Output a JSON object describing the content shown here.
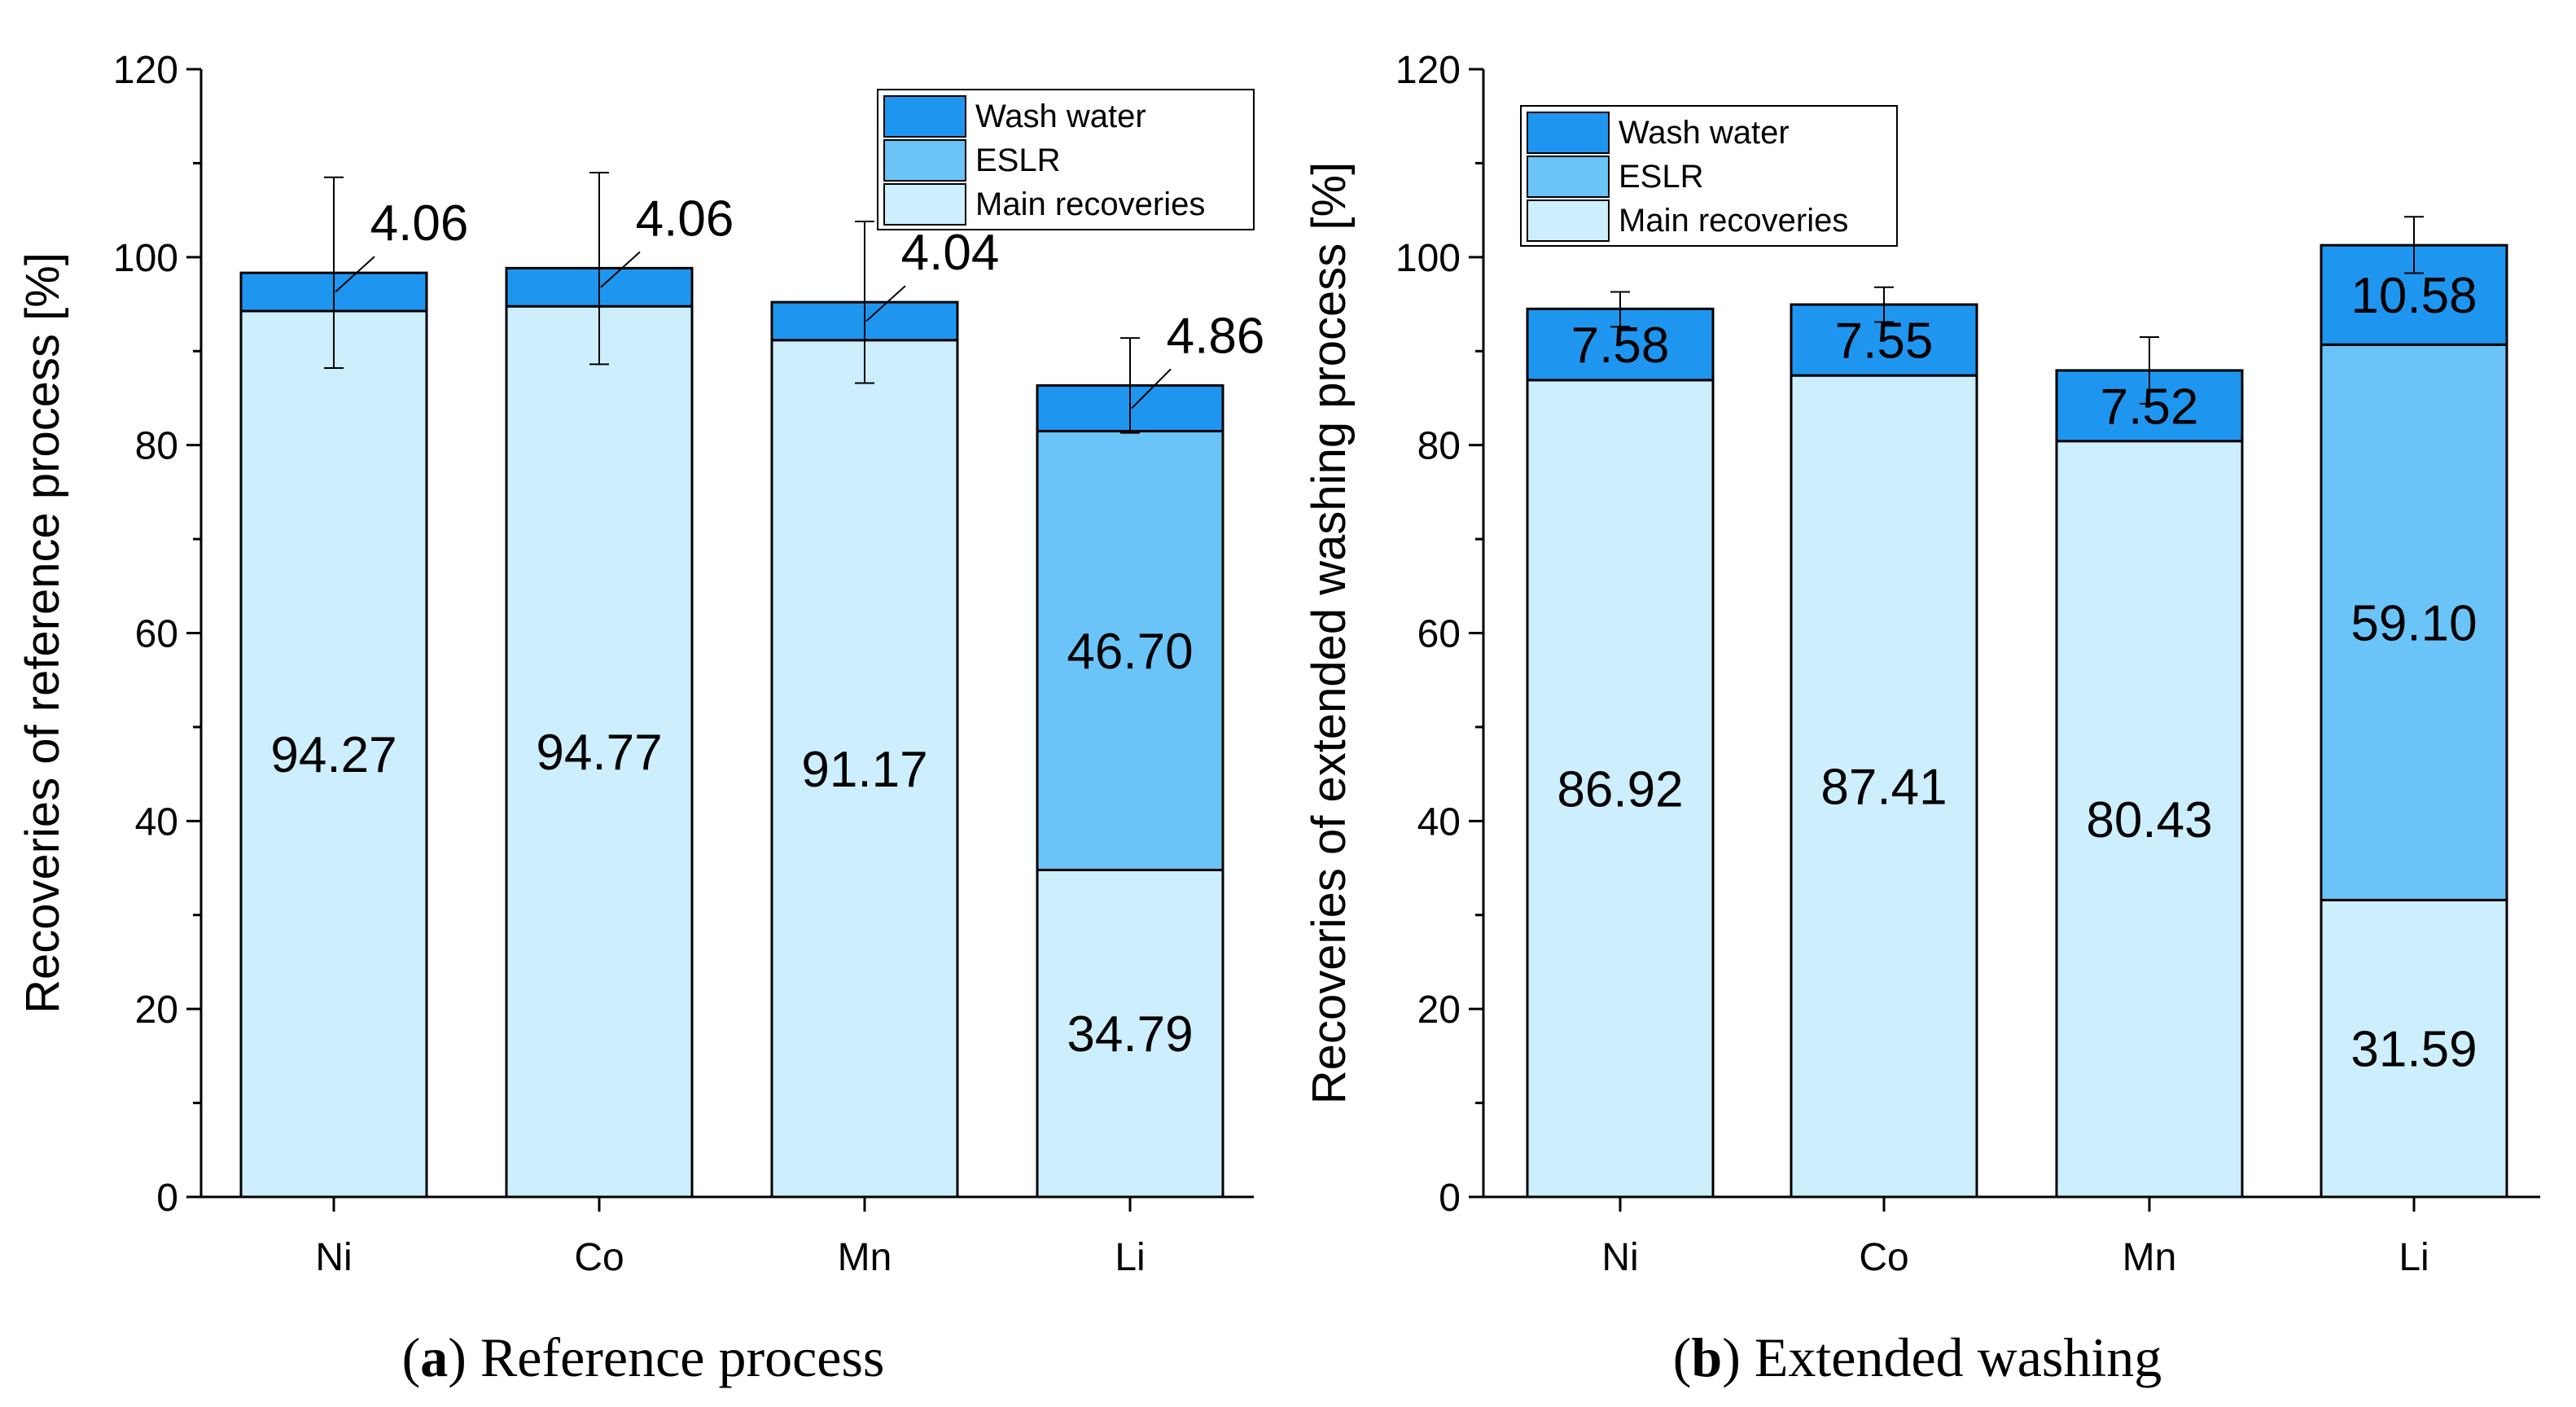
{
  "colors": {
    "main": "#cdeefc",
    "eslr": "#6bc4f7",
    "wash": "#1e96f0",
    "axis": "#000000"
  },
  "legend_labels": [
    "Wash water",
    "ESLR",
    "Main recoveries"
  ],
  "chart_data": [
    {
      "type": "bar",
      "stacked": true,
      "panel_letter": "a",
      "caption": "Reference process",
      "ylabel": "Recoveries of reference process [%]",
      "xlabel": "",
      "ylim": [
        0,
        120
      ],
      "yticks": [
        0,
        20,
        40,
        60,
        80,
        100,
        120
      ],
      "categories": [
        "Ni",
        "Co",
        "Mn",
        "Li"
      ],
      "legend_position": "top-right",
      "series": [
        {
          "name": "Main recoveries",
          "values": [
            94.27,
            94.77,
            91.17,
            34.79
          ],
          "labels": [
            "94.27",
            "94.77",
            "91.17",
            "34.79"
          ]
        },
        {
          "name": "ESLR",
          "values": [
            0,
            0,
            0,
            46.7
          ],
          "labels": [
            "",
            "",
            "",
            "46.70"
          ]
        },
        {
          "name": "Wash water",
          "values": [
            4.06,
            4.06,
            4.04,
            4.86
          ],
          "labels": [
            "4.06",
            "4.06",
            "4.04",
            "4.86"
          ]
        }
      ],
      "error_bars": [
        {
          "center": 98.33,
          "low": 88.2,
          "high": 108.5
        },
        {
          "center": 98.83,
          "low": 88.6,
          "high": 109.0
        },
        {
          "center": 95.21,
          "low": 86.6,
          "high": 103.8
        },
        {
          "center": 86.35,
          "low": 81.3,
          "high": 91.4
        }
      ],
      "wash_labels_outside": true
    },
    {
      "type": "bar",
      "stacked": true,
      "panel_letter": "b",
      "caption": "Extended washing",
      "ylabel": "Recoveries of extended washing process [%]",
      "xlabel": "",
      "ylim": [
        0,
        120
      ],
      "yticks": [
        0,
        20,
        40,
        60,
        80,
        100,
        120
      ],
      "categories": [
        "Ni",
        "Co",
        "Mn",
        "Li"
      ],
      "legend_position": "top-left",
      "series": [
        {
          "name": "Main recoveries",
          "values": [
            86.92,
            87.41,
            80.43,
            31.59
          ],
          "labels": [
            "86.92",
            "87.41",
            "80.43",
            "31.59"
          ]
        },
        {
          "name": "ESLR",
          "values": [
            0,
            0,
            0,
            59.1
          ],
          "labels": [
            "",
            "",
            "",
            "59.10"
          ]
        },
        {
          "name": "Wash water",
          "values": [
            7.58,
            7.55,
            7.52,
            10.58
          ],
          "labels": [
            "7.58",
            "7.55",
            "7.52",
            "10.58"
          ]
        }
      ],
      "error_bars": [
        {
          "center": 94.5,
          "low": 92.6,
          "high": 96.3
        },
        {
          "center": 94.96,
          "low": 93.1,
          "high": 96.8
        },
        {
          "center": 87.95,
          "low": 84.4,
          "high": 91.5
        },
        {
          "center": 101.27,
          "low": 98.3,
          "high": 104.3
        }
      ],
      "wash_labels_outside": false
    }
  ]
}
